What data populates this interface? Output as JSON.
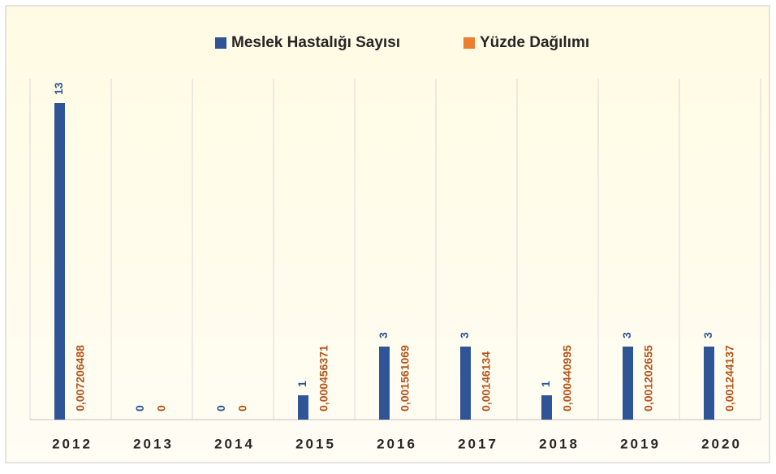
{
  "chart_data": {
    "type": "bar",
    "categories": [
      "2012",
      "2013",
      "2014",
      "2015",
      "2016",
      "2017",
      "2018",
      "2019",
      "2020"
    ],
    "series": [
      {
        "name": "Meslek Hastalığı Sayısı",
        "color": "#2f5597",
        "label_color": "#2f5597",
        "values": [
          13,
          0,
          0,
          1,
          3,
          3,
          1,
          3,
          3
        ]
      },
      {
        "name": "Yüzde Dağılımı",
        "color": "#ed7d31",
        "label_color": "#b4541a",
        "values": [
          0.007206488,
          0,
          0,
          0.000456371,
          0.001561069,
          0.00146134,
          0.000440995,
          0.001202655,
          0.001244137
        ],
        "value_labels": [
          "0,007206488",
          "0",
          "0",
          "0,000456371",
          "0,001561069",
          "0,00146134",
          "0,000440995",
          "0,001202655",
          "0,001244137"
        ]
      }
    ],
    "ylim": [
      0,
      14
    ],
    "legend": "top"
  }
}
